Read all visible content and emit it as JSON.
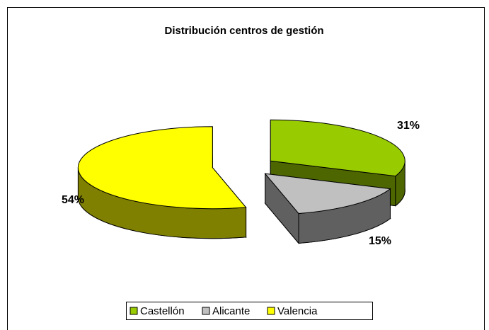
{
  "chart_data": {
    "type": "pie",
    "title": "Distribución centros de gestión",
    "categories": [
      "Castellón",
      "Alicante",
      "Valencia"
    ],
    "values": [
      31,
      15,
      54
    ],
    "value_labels": [
      "31%",
      "15%",
      "54%"
    ],
    "colors": [
      "#99cc00",
      "#c0c0c0",
      "#ffff00"
    ],
    "side_colors": [
      "#4d6600",
      "#606060",
      "#808000"
    ],
    "legend": "bottom"
  }
}
